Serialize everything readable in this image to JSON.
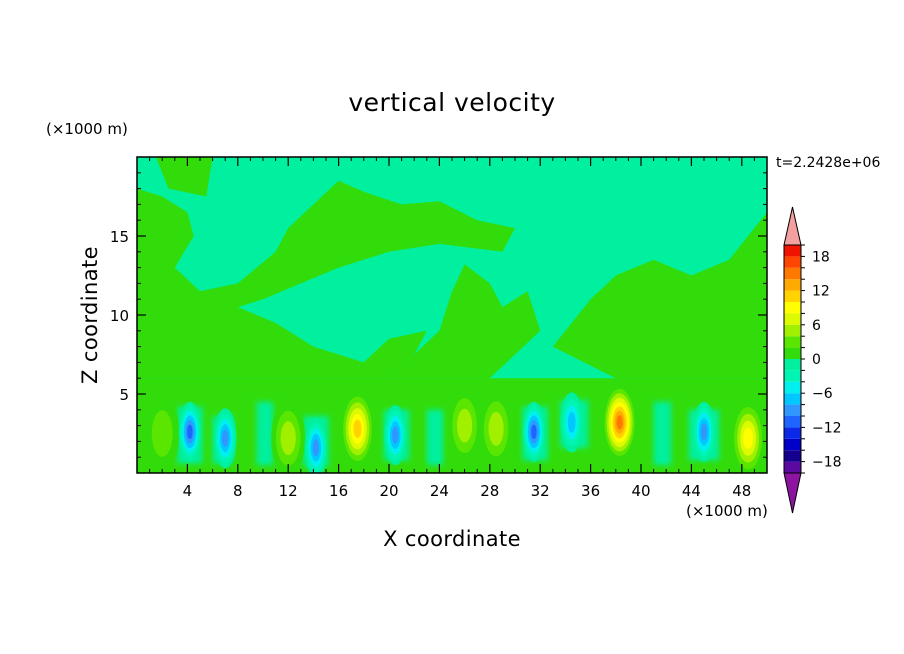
{
  "chart_data": {
    "type": "heatmap",
    "title": "vertical velocity",
    "xlabel": "X coordinate",
    "ylabel": "Z coordinate",
    "x_unit": "(×1000 m)",
    "z_unit": "(×1000 m)",
    "timestamp": "t=2.2428e+06",
    "xlim": [
      0,
      50
    ],
    "ylim": [
      0,
      20
    ],
    "xticks": [
      4,
      8,
      12,
      16,
      20,
      24,
      28,
      32,
      36,
      40,
      44,
      48
    ],
    "yticks": [
      5,
      10,
      15
    ],
    "colorbar": {
      "levels": [
        -20,
        -18,
        -16,
        -14,
        -12,
        -10,
        -8,
        -6,
        -4,
        -2,
        0,
        2,
        4,
        6,
        8,
        10,
        12,
        14,
        16,
        18,
        20
      ],
      "tick_labels": [
        "18",
        "12",
        "6",
        "0",
        "−6",
        "−12",
        "−18"
      ],
      "tick_values": [
        18,
        12,
        6,
        0,
        -6,
        -12,
        -18
      ],
      "colors": [
        "#5a0aa0",
        "#14008c",
        "#0000c8",
        "#0a28e6",
        "#1e64ff",
        "#3296ff",
        "#00c8ff",
        "#00f0f0",
        "#00f5b4",
        "#00f0a0",
        "#32dc0a",
        "#5ae600",
        "#a0f000",
        "#dcfa00",
        "#ffff00",
        "#ffd200",
        "#ffaa00",
        "#ff7800",
        "#ff4600",
        "#f01400"
      ],
      "over_color": "#f5a0a0",
      "under_color": "#8c14a0"
    },
    "background_level_color": "#00f0a0",
    "features": [
      {
        "type": "updraft",
        "x": 2,
        "z": 2.5,
        "peak": 4
      },
      {
        "type": "downdraft",
        "x": 4.2,
        "z": 2.6,
        "peak": -12
      },
      {
        "type": "downdraft",
        "x": 7,
        "z": 2.2,
        "peak": -10
      },
      {
        "type": "updraft",
        "x": 12,
        "z": 2.2,
        "peak": 6
      },
      {
        "type": "downdraft",
        "x": 14.2,
        "z": 1.6,
        "peak": -10
      },
      {
        "type": "updraft",
        "x": 17.5,
        "z": 2.8,
        "peak": 12
      },
      {
        "type": "downdraft",
        "x": 20.5,
        "z": 2.4,
        "peak": -10
      },
      {
        "type": "updraft",
        "x": 26,
        "z": 3,
        "peak": 6
      },
      {
        "type": "updraft",
        "x": 28.5,
        "z": 2.8,
        "peak": 6
      },
      {
        "type": "downdraft",
        "x": 31.5,
        "z": 2.6,
        "peak": -12
      },
      {
        "type": "downdraft",
        "x": 34.5,
        "z": 3.2,
        "peak": -8
      },
      {
        "type": "updraft",
        "x": 38.3,
        "z": 3.2,
        "peak": 16
      },
      {
        "type": "downdraft",
        "x": 45,
        "z": 2.6,
        "peak": -10
      },
      {
        "type": "updraft",
        "x": 48.5,
        "z": 2.2,
        "peak": 10
      }
    ]
  }
}
